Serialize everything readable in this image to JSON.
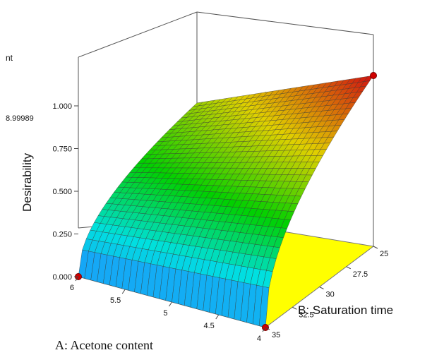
{
  "chart_data": {
    "type": "surface3d",
    "title": "",
    "zlabel": "Desirability",
    "xlabel": "A: Acetone content",
    "ylabel": "B: Saturation time",
    "z_ticks": [
      "0.000",
      "0.250",
      "0.500",
      "0.750",
      "1.000"
    ],
    "x_ticks": [
      "6",
      "5.5",
      "5",
      "4.5",
      "4"
    ],
    "y_ticks": [
      "25",
      "27.5",
      "30",
      "32.5",
      "35"
    ],
    "xlim": [
      4,
      6
    ],
    "ylim": [
      25,
      35
    ],
    "zlim": [
      0,
      1
    ],
    "annotation_value": "8.99989",
    "cut_off_label": "nt",
    "floor_color": "#ffff00",
    "colormap": [
      "#1e90ff",
      "#00e0e0",
      "#00d000",
      "#e0d000",
      "#d01010"
    ],
    "design_points": [
      {
        "acetone": 6,
        "saturation_time": 35,
        "desirability": 0.0
      },
      {
        "acetone": 4,
        "saturation_time": 35,
        "desirability": 0.0
      },
      {
        "acetone": 4,
        "saturation_time": 25,
        "desirability": 1.0
      }
    ],
    "corner_values": [
      {
        "acetone": 6,
        "saturation_time": 25,
        "desirability": 0.67
      },
      {
        "acetone": 4,
        "saturation_time": 25,
        "desirability": 1.0
      },
      {
        "acetone": 6,
        "saturation_time": 35,
        "desirability": 0.0
      },
      {
        "acetone": 4,
        "saturation_time": 35,
        "desirability": 0.0
      }
    ]
  }
}
